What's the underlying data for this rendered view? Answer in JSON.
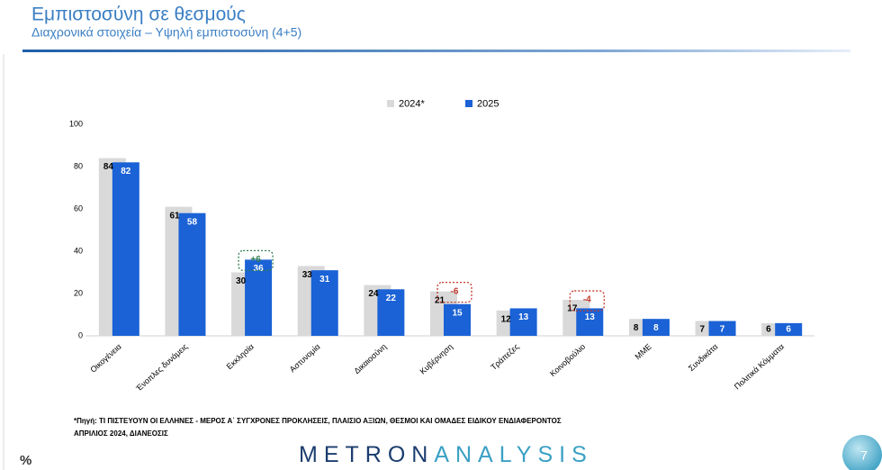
{
  "chart_data": {
    "type": "bar",
    "title": "Εμπιστοσύνη σε θεσμούς",
    "subtitle": "Διαχρονικά στοιχεία – Υψηλή εμπιστοσύνη (4+5)",
    "categories": [
      "Οικογένεια",
      "Ένοπλες δυνάμεις",
      "Εκκλησία",
      "Αστυνομία",
      "Δικαιοσύνη",
      "Κυβέρνηση",
      "Τράπεζες",
      "Κοινοβούλιο",
      "ΜΜΕ",
      "Συνδικάτα",
      "Πολιτικά Κόμματα"
    ],
    "series": [
      {
        "name": "2024*",
        "color": "#d9d9d9",
        "values": [
          84,
          61,
          30,
          33,
          24,
          21,
          12,
          17,
          8,
          7,
          6
        ]
      },
      {
        "name": "2025",
        "color": "#1a62d6",
        "values": [
          82,
          58,
          36,
          31,
          22,
          15,
          13,
          13,
          8,
          7,
          6
        ]
      }
    ],
    "ylim": [
      0,
      100
    ],
    "yticks": [
      0,
      20,
      40,
      60,
      80,
      100
    ],
    "grid": false,
    "legend": "top",
    "annotations": [
      {
        "text": "+6",
        "category": "Εκκλησία",
        "color": "#2e7d4f"
      },
      {
        "text": "-6",
        "category": "Κυβέρνηση",
        "color": "#c0392b"
      },
      {
        "text": "-4",
        "category": "Κοινοβούλιο",
        "color": "#c0392b"
      }
    ],
    "source": [
      "*Πηγή: ΤΙ ΠΙΣΤΕΥΟΥΝ ΟΙ ΕΛΛΗΝΕΣ - ΜΕΡΟΣ Α΄ ΣΥΓΧΡΟΝΕΣ ΠΡΟΚΛΗΣΕΙΣ, ΠΛΑΙΣΙΟ ΑΞΙΩΝ, ΘΕΣΜΟΙ ΚΑΙ ΟΜΑΔΕΣ ΕΙΔΙΚΟΥ ΕΝΔΙΑΦΕΡΟΝΤΟΣ",
      "ΑΠΡΙΛΙΟΣ 2024, ΔΙΑΝΕΟΣΙΣ"
    ],
    "unit_note": "%",
    "logo": {
      "part1": "METRON",
      "part2": "ANALYSIS"
    },
    "page_number": "7"
  }
}
